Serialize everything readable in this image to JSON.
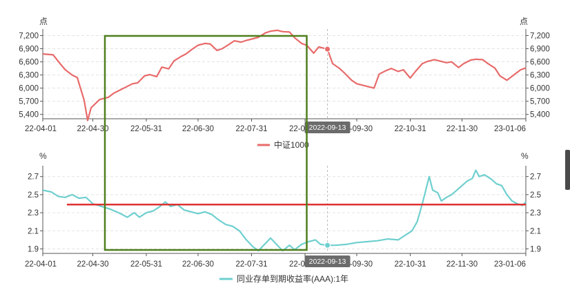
{
  "colors": {
    "series_top": "#e86a6a",
    "series_bottom": "#6fcfcf",
    "reference_line": "#e03030",
    "highlight_box": "#4e7f1c",
    "axis": "#555555",
    "grid": "#e3e3e3",
    "badge_bg": "#6b6b6b"
  },
  "tooltip": {
    "date": "2022-09-13"
  },
  "chart_data": [
    {
      "type": "line",
      "title": "",
      "unit": "点",
      "legend_position": "bottom",
      "series": [
        {
          "name": "中证1000"
        }
      ],
      "x_tick_labels": [
        "22-04-01",
        "22-04-30",
        "22-05-31",
        "22-06-30",
        "22-07-31",
        "22-08-31",
        "22-09-30",
        "22-10-31",
        "22-11-30",
        "23-01-06"
      ],
      "x_ticks": [
        "2022-04-01",
        "2022-04-30",
        "2022-05-31",
        "2022-06-30",
        "2022-07-31",
        "2022-08-31",
        "2022-09-30",
        "2022-10-31",
        "2022-11-30",
        "2023-01-06"
      ],
      "xlim": [
        "2022-04-01",
        "2023-01-06"
      ],
      "y_ticks": [
        "7,200",
        "6,900",
        "6,600",
        "6,300",
        "6,000",
        "5,700",
        "5,400"
      ],
      "ylim": [
        5300,
        7350
      ],
      "grid": true,
      "crosshair_x": "2022-09-13",
      "highlight_region": {
        "x": [
          "2022-05-07",
          "2022-09-01"
        ]
      },
      "points": [
        [
          "2022-04-01",
          6780
        ],
        [
          "2022-04-07",
          6760
        ],
        [
          "2022-04-11",
          6560
        ],
        [
          "2022-04-14",
          6420
        ],
        [
          "2022-04-18",
          6300
        ],
        [
          "2022-04-21",
          6240
        ],
        [
          "2022-04-25",
          5720
        ],
        [
          "2022-04-27",
          5260
        ],
        [
          "2022-04-29",
          5550
        ],
        [
          "2022-05-04",
          5740
        ],
        [
          "2022-05-09",
          5790
        ],
        [
          "2022-05-12",
          5880
        ],
        [
          "2022-05-16",
          5960
        ],
        [
          "2022-05-19",
          6020
        ],
        [
          "2022-05-23",
          6100
        ],
        [
          "2022-05-26",
          6120
        ],
        [
          "2022-05-30",
          6280
        ],
        [
          "2022-06-02",
          6310
        ],
        [
          "2022-06-06",
          6260
        ],
        [
          "2022-06-09",
          6480
        ],
        [
          "2022-06-13",
          6440
        ],
        [
          "2022-06-16",
          6620
        ],
        [
          "2022-06-20",
          6720
        ],
        [
          "2022-06-23",
          6780
        ],
        [
          "2022-06-27",
          6900
        ],
        [
          "2022-06-30",
          6980
        ],
        [
          "2022-07-04",
          7020
        ],
        [
          "2022-07-07",
          7010
        ],
        [
          "2022-07-11",
          6860
        ],
        [
          "2022-07-14",
          6900
        ],
        [
          "2022-07-18",
          7000
        ],
        [
          "2022-07-21",
          7080
        ],
        [
          "2022-07-25",
          7050
        ],
        [
          "2022-07-28",
          7090
        ],
        [
          "2022-08-01",
          7130
        ],
        [
          "2022-08-04",
          7160
        ],
        [
          "2022-08-08",
          7260
        ],
        [
          "2022-08-11",
          7300
        ],
        [
          "2022-08-15",
          7320
        ],
        [
          "2022-08-18",
          7290
        ],
        [
          "2022-08-22",
          7280
        ],
        [
          "2022-08-25",
          7150
        ],
        [
          "2022-08-29",
          7020
        ],
        [
          "2022-09-01",
          6980
        ],
        [
          "2022-09-05",
          6800
        ],
        [
          "2022-09-08",
          6940
        ],
        [
          "2022-09-13",
          6890
        ],
        [
          "2022-09-16",
          6560
        ],
        [
          "2022-09-20",
          6450
        ],
        [
          "2022-09-23",
          6340
        ],
        [
          "2022-09-27",
          6180
        ],
        [
          "2022-09-30",
          6100
        ],
        [
          "2022-10-10",
          6000
        ],
        [
          "2022-10-13",
          6320
        ],
        [
          "2022-10-17",
          6400
        ],
        [
          "2022-10-20",
          6450
        ],
        [
          "2022-10-24",
          6380
        ],
        [
          "2022-10-27",
          6420
        ],
        [
          "2022-10-31",
          6230
        ],
        [
          "2022-11-03",
          6380
        ],
        [
          "2022-11-07",
          6560
        ],
        [
          "2022-11-10",
          6610
        ],
        [
          "2022-11-14",
          6650
        ],
        [
          "2022-11-17",
          6620
        ],
        [
          "2022-11-21",
          6580
        ],
        [
          "2022-11-24",
          6600
        ],
        [
          "2022-11-28",
          6470
        ],
        [
          "2022-12-01",
          6560
        ],
        [
          "2022-12-05",
          6640
        ],
        [
          "2022-12-08",
          6660
        ],
        [
          "2022-12-12",
          6650
        ],
        [
          "2022-12-15",
          6560
        ],
        [
          "2022-12-19",
          6460
        ],
        [
          "2022-12-22",
          6280
        ],
        [
          "2022-12-26",
          6180
        ],
        [
          "2022-12-29",
          6270
        ],
        [
          "2023-01-03",
          6420
        ],
        [
          "2023-01-06",
          6460
        ]
      ]
    },
    {
      "type": "line",
      "title": "",
      "unit": "%",
      "legend_position": "bottom",
      "series": [
        {
          "name": "同业存单到期收益率(AAA):1年"
        }
      ],
      "x_tick_labels": [
        "22-04-01",
        "22-04-30",
        "22-05-31",
        "22-06-30",
        "22-07-31",
        "22-08-31",
        "22-09-30",
        "22-10-31",
        "22-11-30",
        "23-01-06"
      ],
      "x_ticks": [
        "2022-04-01",
        "2022-04-30",
        "2022-05-31",
        "2022-06-30",
        "2022-07-31",
        "2022-08-31",
        "2022-09-30",
        "2022-10-31",
        "2022-11-30",
        "2023-01-06"
      ],
      "xlim": [
        "2022-04-01",
        "2023-01-06"
      ],
      "y_ticks": [
        "2.7",
        "2.5",
        "2.3",
        "2.1",
        "1.9"
      ],
      "ylim": [
        1.85,
        2.82
      ],
      "grid": true,
      "crosshair_x": "2022-09-13",
      "reference_line": {
        "y": 2.39,
        "x_start": "2022-04-15"
      },
      "highlight_region": {
        "x": [
          "2022-05-07",
          "2022-09-01"
        ]
      },
      "points": [
        [
          "2022-04-01",
          2.55
        ],
        [
          "2022-04-06",
          2.53
        ],
        [
          "2022-04-10",
          2.48
        ],
        [
          "2022-04-14",
          2.47
        ],
        [
          "2022-04-18",
          2.5
        ],
        [
          "2022-04-22",
          2.46
        ],
        [
          "2022-04-26",
          2.47
        ],
        [
          "2022-04-30",
          2.4
        ],
        [
          "2022-05-05",
          2.37
        ],
        [
          "2022-05-10",
          2.34
        ],
        [
          "2022-05-15",
          2.3
        ],
        [
          "2022-05-20",
          2.25
        ],
        [
          "2022-05-24",
          2.3
        ],
        [
          "2022-05-27",
          2.25
        ],
        [
          "2022-05-31",
          2.3
        ],
        [
          "2022-06-04",
          2.32
        ],
        [
          "2022-06-08",
          2.37
        ],
        [
          "2022-06-11",
          2.42
        ],
        [
          "2022-06-14",
          2.37
        ],
        [
          "2022-06-18",
          2.39
        ],
        [
          "2022-06-22",
          2.33
        ],
        [
          "2022-06-26",
          2.31
        ],
        [
          "2022-06-30",
          2.29
        ],
        [
          "2022-07-04",
          2.31
        ],
        [
          "2022-07-08",
          2.28
        ],
        [
          "2022-07-12",
          2.22
        ],
        [
          "2022-07-16",
          2.17
        ],
        [
          "2022-07-20",
          2.15
        ],
        [
          "2022-07-24",
          2.1
        ],
        [
          "2022-07-28",
          2.0
        ],
        [
          "2022-08-01",
          1.92
        ],
        [
          "2022-08-04",
          1.88
        ],
        [
          "2022-08-08",
          1.96
        ],
        [
          "2022-08-11",
          2.02
        ],
        [
          "2022-08-14",
          1.96
        ],
        [
          "2022-08-18",
          1.88
        ],
        [
          "2022-08-22",
          1.94
        ],
        [
          "2022-08-25",
          1.89
        ],
        [
          "2022-08-29",
          1.95
        ],
        [
          "2022-09-02",
          1.98
        ],
        [
          "2022-09-06",
          2.0
        ],
        [
          "2022-09-09",
          1.95
        ],
        [
          "2022-09-13",
          1.94
        ],
        [
          "2022-09-18",
          1.94
        ],
        [
          "2022-09-24",
          1.95
        ],
        [
          "2022-09-30",
          1.97
        ],
        [
          "2022-10-06",
          1.98
        ],
        [
          "2022-10-12",
          1.99
        ],
        [
          "2022-10-18",
          2.01
        ],
        [
          "2022-10-24",
          2.0
        ],
        [
          "2022-10-28",
          2.05
        ],
        [
          "2022-11-01",
          2.1
        ],
        [
          "2022-11-04",
          2.2
        ],
        [
          "2022-11-07",
          2.4
        ],
        [
          "2022-11-09",
          2.55
        ],
        [
          "2022-11-11",
          2.7
        ],
        [
          "2022-11-13",
          2.55
        ],
        [
          "2022-11-16",
          2.52
        ],
        [
          "2022-11-18",
          2.43
        ],
        [
          "2022-11-21",
          2.47
        ],
        [
          "2022-11-24",
          2.5
        ],
        [
          "2022-11-27",
          2.55
        ],
        [
          "2022-11-30",
          2.6
        ],
        [
          "2022-12-03",
          2.65
        ],
        [
          "2022-12-06",
          2.68
        ],
        [
          "2022-12-08",
          2.77
        ],
        [
          "2022-12-10",
          2.7
        ],
        [
          "2022-12-13",
          2.72
        ],
        [
          "2022-12-17",
          2.67
        ],
        [
          "2022-12-20",
          2.62
        ],
        [
          "2022-12-23",
          2.6
        ],
        [
          "2022-12-26",
          2.5
        ],
        [
          "2022-12-29",
          2.43
        ],
        [
          "2023-01-01",
          2.4
        ],
        [
          "2023-01-04",
          2.38
        ],
        [
          "2023-01-06",
          2.42
        ]
      ]
    }
  ]
}
